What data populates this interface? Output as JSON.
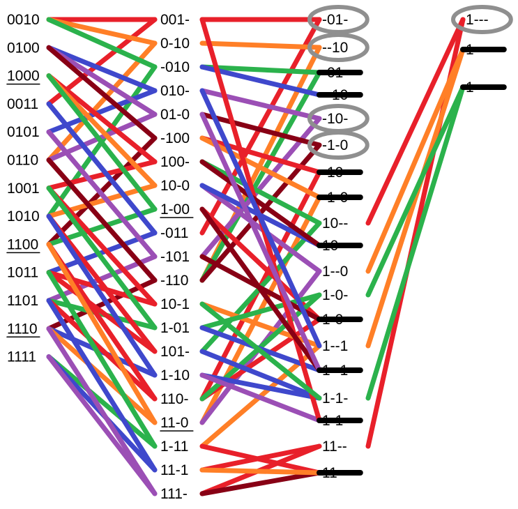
{
  "colors": {
    "red": "#e8202a",
    "orange": "#ff7f27",
    "green": "#2bb24c",
    "blue": "#3f48cc",
    "purple": "#9b4fb5",
    "maroon": "#880015",
    "circle": "#8f8f8f",
    "strike": "#000000"
  },
  "columns": {
    "minterms": [
      {
        "label": "0010",
        "underline": false
      },
      {
        "label": "0100",
        "underline": false
      },
      {
        "label": "1000",
        "underline": true
      },
      {
        "label": "0011",
        "underline": false
      },
      {
        "label": "0101",
        "underline": false
      },
      {
        "label": "0110",
        "underline": false
      },
      {
        "label": "1001",
        "underline": false
      },
      {
        "label": "1010",
        "underline": false
      },
      {
        "label": "1100",
        "underline": true
      },
      {
        "label": "1011",
        "underline": false
      },
      {
        "label": "1101",
        "underline": false
      },
      {
        "label": "1110",
        "underline": true
      },
      {
        "label": "1111",
        "underline": false
      }
    ],
    "pairs": [
      {
        "label": "001-",
        "underline": false
      },
      {
        "label": "0-10",
        "underline": false
      },
      {
        "label": "-010",
        "underline": false
      },
      {
        "label": "010-",
        "underline": false
      },
      {
        "label": "01-0",
        "underline": false
      },
      {
        "label": "-100",
        "underline": false
      },
      {
        "label": "100-",
        "underline": false
      },
      {
        "label": "10-0",
        "underline": false
      },
      {
        "label": "1-00",
        "underline": true
      },
      {
        "label": "-011",
        "underline": false
      },
      {
        "label": "-101",
        "underline": false
      },
      {
        "label": "-110",
        "underline": false
      },
      {
        "label": "10-1",
        "underline": false
      },
      {
        "label": "1-01",
        "underline": false
      },
      {
        "label": "101-",
        "underline": false
      },
      {
        "label": "1-10",
        "underline": false
      },
      {
        "label": "110-",
        "underline": false
      },
      {
        "label": "11-0",
        "underline": true
      },
      {
        "label": "1-11",
        "underline": false
      },
      {
        "label": "11-1",
        "underline": false
      },
      {
        "label": "111-",
        "underline": false
      }
    ],
    "quads": [
      {
        "label": "-01-",
        "circled": true,
        "struck": false
      },
      {
        "label": "--10",
        "circled": true,
        "struck": false
      },
      {
        "label": "-01-",
        "circled": false,
        "struck": true
      },
      {
        "label": "--10",
        "circled": false,
        "struck": true
      },
      {
        "label": "-10-",
        "circled": true,
        "struck": false
      },
      {
        "label": "-1-0",
        "circled": true,
        "struck": false
      },
      {
        "label": "-10-",
        "circled": false,
        "struck": true
      },
      {
        "label": "-1-0",
        "circled": false,
        "struck": true
      },
      {
        "label": "10--",
        "circled": false,
        "struck": false
      },
      {
        "label": "10--",
        "circled": false,
        "struck": true
      },
      {
        "label": "1--0",
        "circled": false,
        "struck": false
      },
      {
        "label": "1-0-",
        "circled": false,
        "struck": false
      },
      {
        "label": "1-0-",
        "circled": false,
        "struck": true
      },
      {
        "label": "1--1",
        "circled": false,
        "struck": false
      },
      {
        "label": "1--1",
        "circled": false,
        "struck": true
      },
      {
        "label": "1-1-",
        "circled": false,
        "struck": false
      },
      {
        "label": "1-1-",
        "circled": false,
        "struck": true
      },
      {
        "label": "11--",
        "circled": false,
        "struck": false
      },
      {
        "label": "11--",
        "circled": false,
        "struck": true
      }
    ],
    "octets": [
      {
        "label": "1---",
        "circled": true,
        "struck": false
      },
      {
        "label": "1---",
        "circled": false,
        "struck": true
      },
      {
        "label": "1---",
        "circled": false,
        "struck": true
      }
    ]
  },
  "links": {
    "minterm_to_pair": [
      [
        0,
        0,
        "red"
      ],
      [
        3,
        0,
        "red"
      ],
      [
        0,
        1,
        "orange"
      ],
      [
        5,
        1,
        "orange"
      ],
      [
        0,
        2,
        "green"
      ],
      [
        7,
        2,
        "green"
      ],
      [
        1,
        3,
        "blue"
      ],
      [
        4,
        3,
        "blue"
      ],
      [
        1,
        4,
        "purple"
      ],
      [
        5,
        4,
        "purple"
      ],
      [
        1,
        5,
        "maroon"
      ],
      [
        8,
        5,
        "maroon"
      ],
      [
        2,
        6,
        "red"
      ],
      [
        6,
        6,
        "red"
      ],
      [
        2,
        7,
        "orange"
      ],
      [
        7,
        7,
        "orange"
      ],
      [
        2,
        8,
        "green"
      ],
      [
        8,
        8,
        "green"
      ],
      [
        3,
        9,
        "blue"
      ],
      [
        9,
        9,
        "blue"
      ],
      [
        4,
        10,
        "purple"
      ],
      [
        10,
        10,
        "purple"
      ],
      [
        5,
        11,
        "maroon"
      ],
      [
        11,
        11,
        "maroon"
      ],
      [
        6,
        12,
        "red"
      ],
      [
        9,
        12,
        "red"
      ],
      [
        6,
        13,
        "green"
      ],
      [
        10,
        13,
        "green"
      ],
      [
        7,
        14,
        "red"
      ],
      [
        9,
        14,
        "red"
      ],
      [
        7,
        15,
        "blue"
      ],
      [
        11,
        15,
        "blue"
      ],
      [
        8,
        16,
        "red"
      ],
      [
        10,
        16,
        "red"
      ],
      [
        8,
        17,
        "orange"
      ],
      [
        11,
        17,
        "orange"
      ],
      [
        9,
        18,
        "green"
      ],
      [
        12,
        18,
        "green"
      ],
      [
        10,
        19,
        "blue"
      ],
      [
        12,
        19,
        "blue"
      ],
      [
        11,
        20,
        "purple"
      ],
      [
        12,
        20,
        "purple"
      ]
    ],
    "pair_to_quad": [
      [
        0,
        0,
        "red"
      ],
      [
        9,
        0,
        "red"
      ],
      [
        1,
        1,
        "orange"
      ],
      [
        11,
        1,
        "orange"
      ],
      [
        2,
        2,
        "green"
      ],
      [
        11,
        2,
        "green"
      ],
      [
        3,
        4,
        "purple"
      ],
      [
        10,
        4,
        "purple"
      ],
      [
        4,
        5,
        "maroon"
      ],
      [
        11,
        5,
        "maroon"
      ],
      [
        5,
        6,
        "red"
      ],
      [
        16,
        6,
        "red"
      ],
      [
        5,
        7,
        "orange"
      ],
      [
        17,
        7,
        "orange"
      ],
      [
        6,
        8,
        "green"
      ],
      [
        14,
        8,
        "green"
      ],
      [
        7,
        10,
        "purple"
      ],
      [
        17,
        10,
        "purple"
      ],
      [
        8,
        12,
        "red"
      ],
      [
        16,
        12,
        "red"
      ],
      [
        12,
        13,
        "orange"
      ],
      [
        18,
        13,
        "orange"
      ],
      [
        13,
        11,
        "green"
      ],
      [
        16,
        11,
        "green"
      ],
      [
        14,
        15,
        "blue"
      ],
      [
        15,
        15,
        "blue"
      ],
      [
        19,
        17,
        "red"
      ],
      [
        20,
        17,
        "red"
      ],
      [
        18,
        18,
        "red"
      ],
      [
        20,
        18,
        "maroon"
      ],
      [
        15,
        16,
        "purple"
      ],
      [
        7,
        9,
        "blue"
      ],
      [
        10,
        12,
        "maroon"
      ],
      [
        13,
        14,
        "blue"
      ],
      [
        19,
        18,
        "orange"
      ],
      [
        2,
        3,
        "blue"
      ],
      [
        0,
        16,
        "red"
      ],
      [
        6,
        9,
        "maroon"
      ],
      [
        8,
        14,
        "maroon"
      ],
      [
        12,
        15,
        "green"
      ],
      [
        4,
        14,
        "purple"
      ],
      [
        3,
        13,
        "blue"
      ]
    ],
    "quad_to_octet": [
      [
        8,
        0,
        "red"
      ],
      [
        17,
        0,
        "red"
      ],
      [
        10,
        1,
        "orange"
      ],
      [
        13,
        1,
        "orange"
      ],
      [
        11,
        2,
        "green"
      ],
      [
        15,
        2,
        "green"
      ]
    ]
  }
}
